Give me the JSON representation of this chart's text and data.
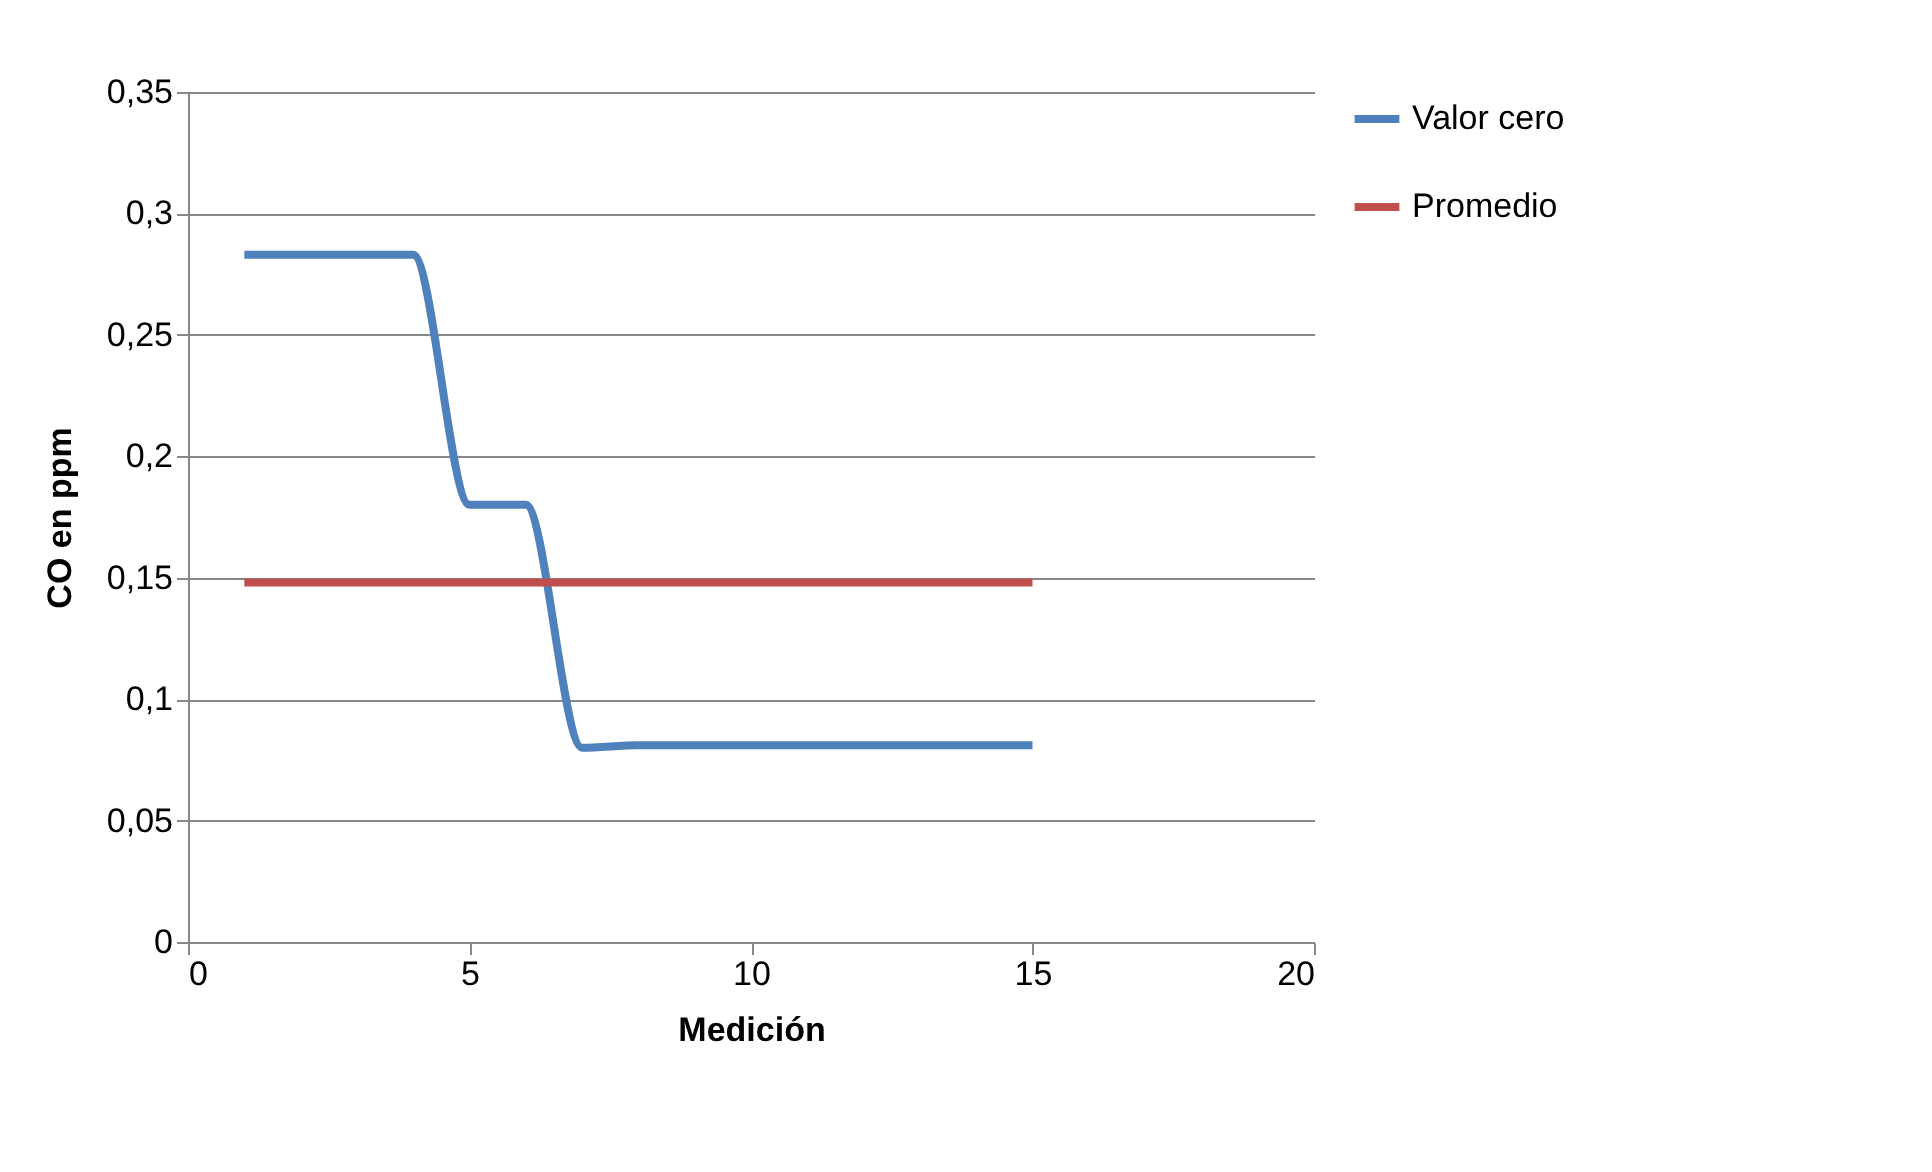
{
  "chart_data": {
    "type": "line",
    "xlabel": "Medición",
    "ylabel": "CO en ppm",
    "x": [
      1,
      2,
      3,
      4,
      5,
      6,
      7,
      8,
      9,
      10,
      11,
      12,
      13,
      14,
      15
    ],
    "series": [
      {
        "name": "Valor cero",
        "color": "#4f81bd",
        "values": [
          0.283,
          0.283,
          0.283,
          0.283,
          0.18,
          0.18,
          0.08,
          0.081,
          0.081,
          0.081,
          0.081,
          0.081,
          0.081,
          0.081,
          0.081
        ]
      },
      {
        "name": "Promedio",
        "color": "#c0504d",
        "values": [
          0.148,
          0.148,
          0.148,
          0.148,
          0.148,
          0.148,
          0.148,
          0.148,
          0.148,
          0.148,
          0.148,
          0.148,
          0.148,
          0.148,
          0.148
        ]
      }
    ],
    "xlim": [
      0,
      20
    ],
    "xticks": [
      0,
      5,
      10,
      15,
      20
    ],
    "ylim": [
      0,
      0.35
    ],
    "yticks": [
      0,
      {
        "value": 0.05,
        "label": "0,05"
      },
      {
        "value": 0.1,
        "label": "0,1"
      },
      {
        "value": 0.15,
        "label": "0,15"
      },
      {
        "value": 0.2,
        "label": "0,2"
      },
      {
        "value": 0.25,
        "label": "0,25"
      },
      {
        "value": 0.3,
        "label": "0,3"
      },
      {
        "value": 0.35,
        "label": "0,35"
      }
    ],
    "grid": "y",
    "legend": "right",
    "marker": "none",
    "line_style": "solid"
  }
}
